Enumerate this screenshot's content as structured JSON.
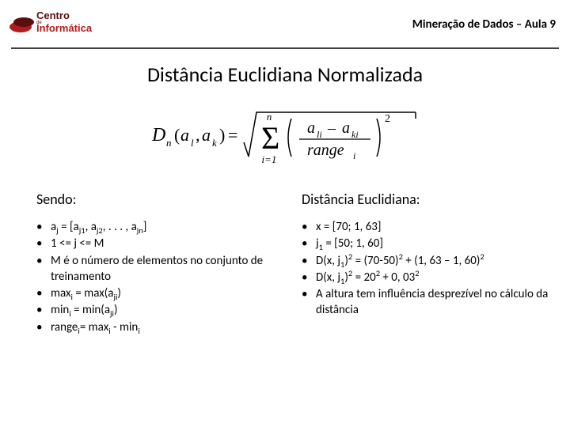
{
  "header": {
    "logo_text_top": "Centro",
    "logo_text_mid": "Informática",
    "brand_red": "#b11d1d",
    "brand_dark": "#5a0f0f",
    "page_title": "Mineração de Dados – Aula 9",
    "hr_color": "#404040"
  },
  "slide": {
    "title": "Distância Euclidiana Normalizada",
    "title_fontsize": 26,
    "formula": {
      "lhs": "D",
      "lhs_sub": "n",
      "args": "(a",
      "arg1_sub": "l",
      "mid": ", a",
      "arg2_sub": "k",
      "close": ") = ",
      "sum_upper": "n",
      "sum_lower": "i=1",
      "frac_top_left": "a",
      "frac_top_left_sub": "li",
      "frac_top_mid": " – a",
      "frac_top_right_sub": "ki",
      "frac_bot": "range",
      "frac_bot_sub": "i",
      "exp": "2"
    }
  },
  "left": {
    "heading": "Sendo:",
    "items": [
      "a<sub>j</sub> = [a<sub>j1</sub>, a<sub>j2</sub>, . . . , a<sub>jn</sub>]",
      "1 <= j <= M",
      "M é o número de elementos no conjunto de treinamento",
      "max<sub>i</sub> = max(a<sub>ji</sub>)",
      "min<sub>i</sub> = min(a<sub>ji</sub>)",
      "range<sub>i</sub>= max<sub>i</sub> - min<sub>i</sub>"
    ]
  },
  "right": {
    "heading": "Distância Euclidiana:",
    "items": [
      "x = [70; 1, 63]",
      "j<sub>1</sub> = [50; 1, 60]",
      "D(x, j<sub>1</sub>)<sup>2</sup> = (70-50)<sup>2</sup> + (1, 63 – 1, 60)<sup>2</sup>",
      "D(x, j<sub>1</sub>)<sup>2</sup> = 20<sup>2</sup> + 0, 03<sup>2</sup>",
      "A altura tem influência desprezível no cálculo da distância"
    ]
  },
  "style": {
    "body_font_size": 15,
    "subhead_font_size": 18,
    "text_color": "#000000",
    "background_color": "#ffffff"
  }
}
